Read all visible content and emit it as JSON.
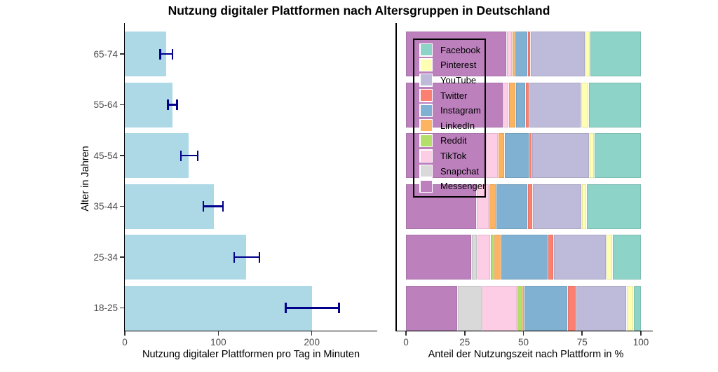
{
  "title": "Nutzung digitaler Plattformen nach Altersgruppen in Deutschland",
  "colors": {
    "bar_fill": "#ADD8E6",
    "error_bar": "#00008B",
    "axis_line": "#000000",
    "tick_text": "#4D4D4D"
  },
  "chart_data": [
    {
      "type": "bar",
      "orientation": "horizontal",
      "title": "Nutzung digitaler Plattformen nach Altersgruppen in Deutschland",
      "xlabel": "Nutzung digitaler Plattformen pro Tag in Minuten",
      "ylabel": "Alter in Jahren",
      "categories": [
        "65-74",
        "55-64",
        "45-54",
        "35-44",
        "25-34",
        "18-25"
      ],
      "values": [
        44,
        51,
        68,
        95,
        130,
        200
      ],
      "error_low": [
        38,
        46,
        60,
        84,
        117,
        172
      ],
      "error_high": [
        51,
        56,
        78,
        105,
        144,
        229
      ],
      "x_ticks": [
        0,
        100,
        200
      ],
      "xlim": [
        0,
        270
      ],
      "grid": false,
      "bar_color": "#ADD8E6",
      "error_color": "#00008B"
    },
    {
      "type": "stacked-bar",
      "orientation": "horizontal",
      "xlabel": "Anteil der Nutzungszeit nach Plattform in %",
      "categories": [
        "65-74",
        "55-64",
        "45-54",
        "35-44",
        "25-34",
        "18-25"
      ],
      "x_ticks": [
        0,
        25,
        50,
        75,
        100
      ],
      "xlim": [
        0,
        100
      ],
      "grid": false,
      "legend_position": "top-left-inside",
      "legend_order": [
        "Facebook",
        "Pinterest",
        "YouTube",
        "Twitter",
        "Instagram",
        "LinkedIn",
        "Reddit",
        "TikTok",
        "Snapchat",
        "Messenger"
      ],
      "series": [
        {
          "name": "Messenger",
          "color": "#BC80BD",
          "values": [
            43,
            41.5,
            34,
            30,
            28,
            22
          ]
        },
        {
          "name": "Snapchat",
          "color": "#D9D9D9",
          "values": [
            0,
            0,
            0,
            0,
            2.5,
            10.5
          ]
        },
        {
          "name": "TikTok",
          "color": "#FCCDE5",
          "values": [
            2.5,
            2.5,
            5.5,
            5.5,
            5.5,
            15
          ]
        },
        {
          "name": "Reddit",
          "color": "#B3DE69",
          "values": [
            0,
            0,
            0,
            0,
            1.5,
            2
          ]
        },
        {
          "name": "LinkedIn",
          "color": "#FDB462",
          "values": [
            1,
            3,
            2.7,
            3,
            3,
            1
          ]
        },
        {
          "name": "Instagram",
          "color": "#80B1D3",
          "values": [
            5.5,
            4,
            10.3,
            13.5,
            20,
            18.5
          ]
        },
        {
          "name": "Twitter",
          "color": "#FB8072",
          "values": [
            1,
            1.5,
            1.2,
            2,
            2.5,
            3.5
          ]
        },
        {
          "name": "YouTube",
          "color": "#BEBADA",
          "values": [
            23.5,
            22,
            24.5,
            21,
            22.5,
            21.5
          ]
        },
        {
          "name": "Pinterest",
          "color": "#FFFFB3",
          "values": [
            2,
            3.5,
            2,
            2,
            2.5,
            3
          ]
        },
        {
          "name": "Facebook",
          "color": "#8DD3C7",
          "values": [
            21.5,
            22,
            19.8,
            23,
            12,
            3
          ]
        }
      ]
    }
  ]
}
